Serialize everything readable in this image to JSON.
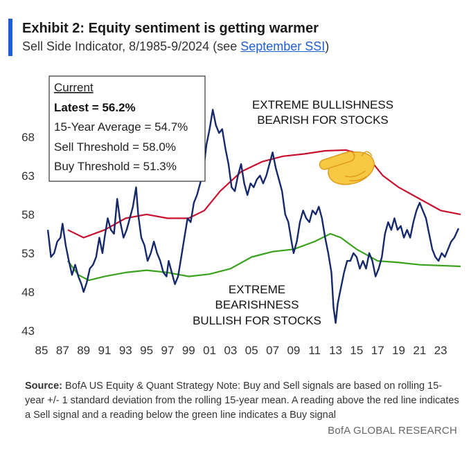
{
  "header": {
    "title": "Exhibit 2: Equity sentiment is getting warmer",
    "subtitle_prefix": "Sell Side Indicator, 8/1985-9/2024 (see ",
    "subtitle_link": "September SSI",
    "subtitle_suffix": ")"
  },
  "legend_box": {
    "heading": "Current",
    "latest": "Latest = 56.2%",
    "avg": "15-Year Average = 54.7%",
    "sell": "Sell Threshold = 58.0%",
    "buy": "Buy Threshold = 51.3%"
  },
  "annotations": {
    "bull_line1": "EXTREME BULLISHNESS",
    "bull_line2": "BEARISH FOR STOCKS",
    "bear_line1": "EXTREME",
    "bear_line2": "BEARISHNESS",
    "bear_line3": "BULLISH FOR STOCKS"
  },
  "source_label": "Source:",
  "source_text": " BofA US Equity & Quant Strategy Note: Buy and Sell signals are based on rolling 15-year +/- 1 standard deviation from the rolling 15-year mean. A reading above the red line indicates a Sell signal and a reading below the green line indicates a Buy signal",
  "footer": "BofA GLOBAL RESEARCH",
  "colors": {
    "ssi": "#15296b",
    "sell": "#c8102e",
    "buy": "#3aa11c",
    "accent": "#1f5fd6"
  },
  "icons": {
    "pointer": "pointing-hand-emoji"
  },
  "chart_data": {
    "type": "line",
    "title": "Sell Side Indicator",
    "x_tick_labels": [
      "85",
      "87",
      "89",
      "91",
      "93",
      "95",
      "97",
      "99",
      "01",
      "03",
      "05",
      "07",
      "09",
      "11",
      "13",
      "15",
      "17",
      "19",
      "21",
      "23"
    ],
    "y_tick_labels": [
      "43",
      "48",
      "53",
      "58",
      "63",
      "68"
    ],
    "ylim": [
      43,
      72
    ],
    "xlim": [
      1985.0,
      2024.9
    ],
    "series": [
      {
        "name": "Sell Side Indicator",
        "points": [
          [
            1985.6,
            56.0
          ],
          [
            1985.9,
            52.5
          ],
          [
            1986.2,
            53.0
          ],
          [
            1986.5,
            54.5
          ],
          [
            1986.8,
            55.0
          ],
          [
            1987.0,
            56.8
          ],
          [
            1987.3,
            54.0
          ],
          [
            1987.6,
            52.0
          ],
          [
            1987.9,
            50.2
          ],
          [
            1988.2,
            51.5
          ],
          [
            1988.5,
            50.0
          ],
          [
            1988.8,
            49.0
          ],
          [
            1989.0,
            48.0
          ],
          [
            1989.3,
            49.2
          ],
          [
            1989.6,
            51.0
          ],
          [
            1989.9,
            51.5
          ],
          [
            1990.2,
            52.5
          ],
          [
            1990.5,
            55.0
          ],
          [
            1990.8,
            53.0
          ],
          [
            1991.0,
            55.0
          ],
          [
            1991.3,
            57.5
          ],
          [
            1991.6,
            56.0
          ],
          [
            1991.9,
            55.5
          ],
          [
            1992.2,
            60.0
          ],
          [
            1992.5,
            57.0
          ],
          [
            1992.8,
            55.0
          ],
          [
            1993.1,
            56.0
          ],
          [
            1993.4,
            57.5
          ],
          [
            1993.7,
            59.0
          ],
          [
            1994.0,
            61.5
          ],
          [
            1994.2,
            58.0
          ],
          [
            1994.5,
            55.0
          ],
          [
            1994.8,
            54.0
          ],
          [
            1995.1,
            52.0
          ],
          [
            1995.4,
            53.0
          ],
          [
            1995.7,
            54.5
          ],
          [
            1996.0,
            53.0
          ],
          [
            1996.3,
            52.0
          ],
          [
            1996.6,
            50.5
          ],
          [
            1996.9,
            50.0
          ],
          [
            1997.1,
            52.0
          ],
          [
            1997.4,
            50.5
          ],
          [
            1997.7,
            49.0
          ],
          [
            1998.0,
            50.0
          ],
          [
            1998.3,
            52.5
          ],
          [
            1998.6,
            55.0
          ],
          [
            1998.9,
            57.5
          ],
          [
            1999.2,
            57.0
          ],
          [
            1999.5,
            59.5
          ],
          [
            1999.8,
            60.5
          ],
          [
            2000.1,
            62.0
          ],
          [
            2000.4,
            63.5
          ],
          [
            2000.7,
            67.0
          ],
          [
            2001.0,
            69.0
          ],
          [
            2001.3,
            71.5
          ],
          [
            2001.6,
            69.5
          ],
          [
            2001.9,
            68.5
          ],
          [
            2002.2,
            69.0
          ],
          [
            2002.5,
            66.5
          ],
          [
            2002.8,
            64.5
          ],
          [
            2003.1,
            61.5
          ],
          [
            2003.4,
            61.0
          ],
          [
            2003.7,
            63.0
          ],
          [
            2004.0,
            64.5
          ],
          [
            2004.3,
            62.0
          ],
          [
            2004.6,
            60.5
          ],
          [
            2004.9,
            62.0
          ],
          [
            2005.2,
            61.5
          ],
          [
            2005.5,
            62.5
          ],
          [
            2005.8,
            63.0
          ],
          [
            2006.1,
            62.0
          ],
          [
            2006.4,
            63.0
          ],
          [
            2006.7,
            64.5
          ],
          [
            2007.0,
            66.0
          ],
          [
            2007.3,
            64.0
          ],
          [
            2007.6,
            62.5
          ],
          [
            2007.9,
            61.0
          ],
          [
            2008.2,
            58.0
          ],
          [
            2008.5,
            57.0
          ],
          [
            2008.8,
            54.5
          ],
          [
            2009.0,
            53.0
          ],
          [
            2009.3,
            54.5
          ],
          [
            2009.6,
            57.0
          ],
          [
            2009.9,
            58.5
          ],
          [
            2010.2,
            57.5
          ],
          [
            2010.5,
            57.0
          ],
          [
            2010.8,
            58.5
          ],
          [
            2011.1,
            58.0
          ],
          [
            2011.4,
            59.0
          ],
          [
            2011.7,
            57.5
          ],
          [
            2012.0,
            55.0
          ],
          [
            2012.3,
            53.0
          ],
          [
            2012.6,
            50.5
          ],
          [
            2012.8,
            46.0
          ],
          [
            2013.0,
            44.0
          ],
          [
            2013.2,
            46.5
          ],
          [
            2013.5,
            48.5
          ],
          [
            2013.8,
            50.5
          ],
          [
            2014.1,
            52.0
          ],
          [
            2014.4,
            52.0
          ],
          [
            2014.7,
            53.0
          ],
          [
            2015.0,
            52.5
          ],
          [
            2015.3,
            51.0
          ],
          [
            2015.6,
            52.0
          ],
          [
            2015.9,
            51.0
          ],
          [
            2016.2,
            53.0
          ],
          [
            2016.5,
            52.0
          ],
          [
            2016.8,
            50.0
          ],
          [
            2017.1,
            51.0
          ],
          [
            2017.4,
            52.5
          ],
          [
            2017.7,
            55.5
          ],
          [
            2018.0,
            57.0
          ],
          [
            2018.3,
            56.0
          ],
          [
            2018.6,
            57.5
          ],
          [
            2018.9,
            56.0
          ],
          [
            2019.2,
            56.5
          ],
          [
            2019.5,
            55.0
          ],
          [
            2019.8,
            56.0
          ],
          [
            2020.1,
            55.0
          ],
          [
            2020.4,
            57.0
          ],
          [
            2020.7,
            58.5
          ],
          [
            2021.0,
            59.5
          ],
          [
            2021.3,
            58.5
          ],
          [
            2021.6,
            57.5
          ],
          [
            2021.9,
            55.5
          ],
          [
            2022.2,
            53.5
          ],
          [
            2022.5,
            52.5
          ],
          [
            2022.8,
            52.0
          ],
          [
            2023.1,
            53.0
          ],
          [
            2023.4,
            52.5
          ],
          [
            2023.7,
            53.5
          ],
          [
            2024.0,
            54.5
          ],
          [
            2024.3,
            55.0
          ],
          [
            2024.7,
            56.2
          ]
        ]
      },
      {
        "name": "Sell Threshold",
        "points": [
          [
            1987.5,
            56.0
          ],
          [
            1989.0,
            55.0
          ],
          [
            1991.0,
            56.0
          ],
          [
            1993.0,
            57.5
          ],
          [
            1995.0,
            58.0
          ],
          [
            1997.0,
            57.5
          ],
          [
            1999.0,
            57.5
          ],
          [
            2000.5,
            58.5
          ],
          [
            2002.0,
            61.0
          ],
          [
            2004.0,
            63.5
          ],
          [
            2006.0,
            64.8
          ],
          [
            2008.0,
            65.5
          ],
          [
            2010.0,
            65.8
          ],
          [
            2012.0,
            66.2
          ],
          [
            2014.0,
            66.3
          ],
          [
            2016.0,
            65.5
          ],
          [
            2017.5,
            63.0
          ],
          [
            2019.0,
            61.5
          ],
          [
            2021.0,
            60.0
          ],
          [
            2023.0,
            58.5
          ],
          [
            2024.9,
            58.0
          ]
        ]
      },
      {
        "name": "Buy Threshold",
        "points": [
          [
            1987.5,
            52.0
          ],
          [
            1988.5,
            50.2
          ],
          [
            1989.5,
            49.5
          ],
          [
            1991.0,
            50.0
          ],
          [
            1993.0,
            50.5
          ],
          [
            1995.0,
            50.8
          ],
          [
            1997.0,
            50.5
          ],
          [
            1999.0,
            50.0
          ],
          [
            2001.0,
            50.3
          ],
          [
            2003.0,
            51.0
          ],
          [
            2005.0,
            52.5
          ],
          [
            2007.0,
            53.2
          ],
          [
            2009.0,
            53.5
          ],
          [
            2011.0,
            54.5
          ],
          [
            2012.5,
            55.5
          ],
          [
            2013.5,
            55.0
          ],
          [
            2015.0,
            53.5
          ],
          [
            2017.0,
            52.0
          ],
          [
            2019.0,
            51.8
          ],
          [
            2021.0,
            51.5
          ],
          [
            2024.9,
            51.3
          ]
        ]
      }
    ]
  }
}
